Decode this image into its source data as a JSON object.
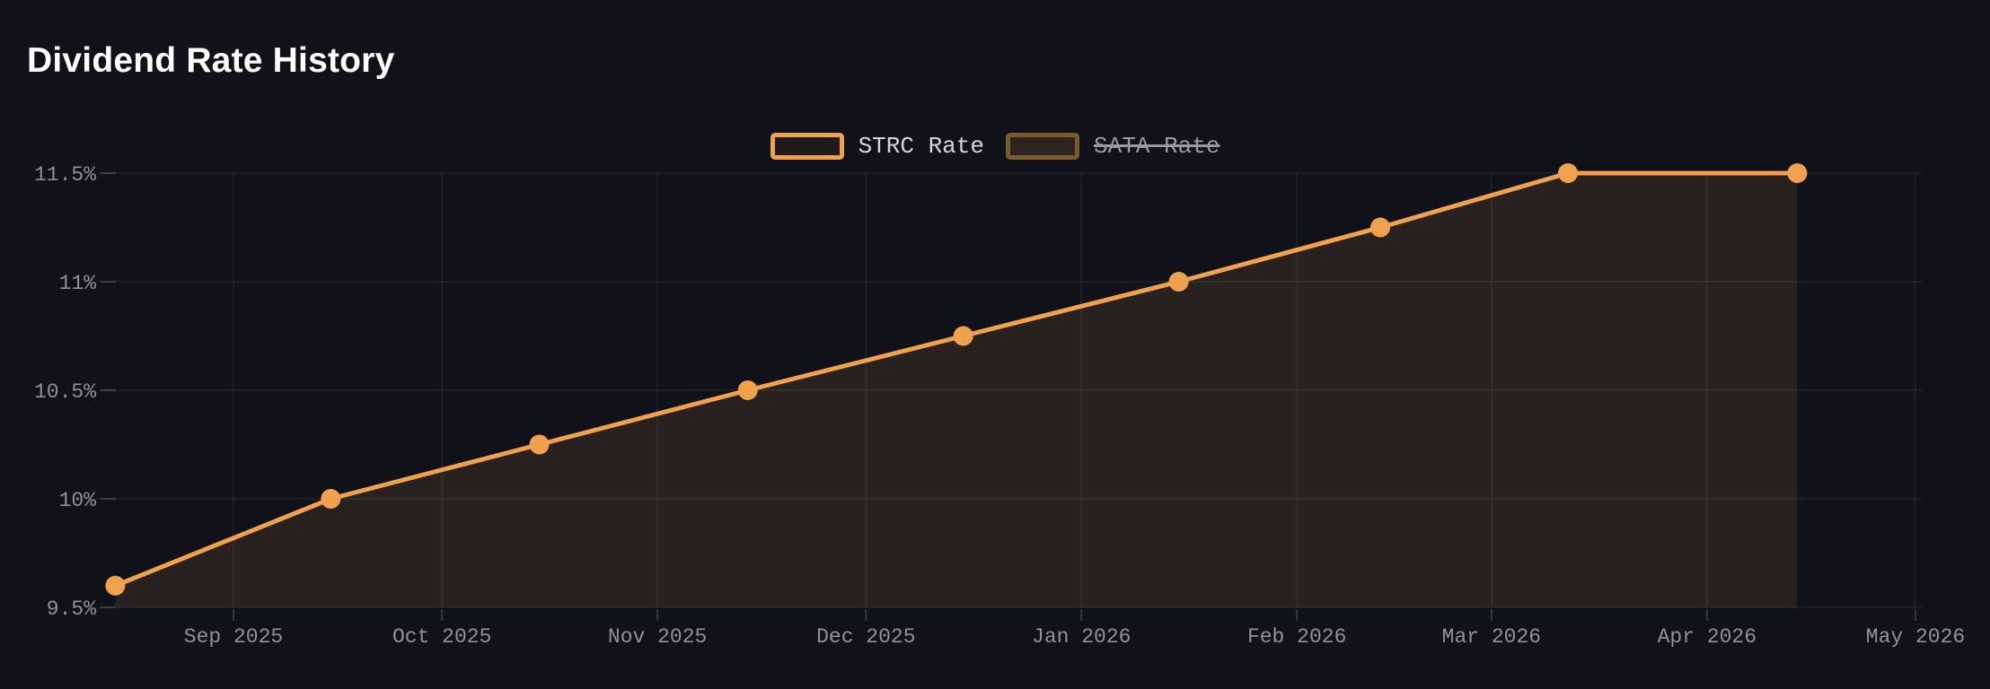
{
  "title": "Dividend Rate History",
  "colors": {
    "background": "#11111a",
    "title_text": "#ffffff",
    "accent_orange": "#f0a14e",
    "area_fill": "rgba(240,161,78,0.11)",
    "gridline": "rgba(255,255,255,0.07)",
    "tick_mark": "rgba(255,255,255,0.16)",
    "axis_text": "#8e929c",
    "legend_text_active": "#d3d6da",
    "legend_text_inactive": "#959aa3",
    "inactive_swatch_border": "#7a5a2b",
    "swatch_fill_active": "rgba(240,161,78,0.07)",
    "swatch_fill_inactive": "rgba(240,161,78,0.13)"
  },
  "legend": {
    "items": [
      {
        "label": "STRC Rate",
        "active": true
      },
      {
        "label": "SATA Rate",
        "active": false
      }
    ]
  },
  "chart_data": {
    "type": "line",
    "title": "Dividend Rate History",
    "grid": true,
    "legend_position": "top-center",
    "y_axis": {
      "unit": "%",
      "min": 9.5,
      "max": 11.5,
      "ticks": [
        {
          "value": 11.5,
          "label": "11.5%"
        },
        {
          "value": 11.0,
          "label": "11%"
        },
        {
          "value": 10.5,
          "label": "10.5%"
        },
        {
          "value": 10.0,
          "label": "10%"
        },
        {
          "value": 9.5,
          "label": "9.5%"
        }
      ]
    },
    "x_axis": {
      "type": "time",
      "ticks": [
        {
          "date": "2025-09-01",
          "label": "Sep 2025"
        },
        {
          "date": "2025-10-01",
          "label": "Oct 2025"
        },
        {
          "date": "2025-11-01",
          "label": "Nov 2025"
        },
        {
          "date": "2025-12-01",
          "label": "Dec 2025"
        },
        {
          "date": "2026-01-01",
          "label": "Jan 2026"
        },
        {
          "date": "2026-02-01",
          "label": "Feb 2026"
        },
        {
          "date": "2026-03-01",
          "label": "Mar 2026"
        },
        {
          "date": "2026-04-01",
          "label": "Apr 2026"
        },
        {
          "date": "2026-05-01",
          "label": "May 2026"
        }
      ]
    },
    "series": [
      {
        "name": "STRC Rate",
        "visible": true,
        "style": "line-with-dots-and-area",
        "points": [
          {
            "date": "2025-08-15",
            "value": 9.6
          },
          {
            "date": "2025-09-15",
            "value": 10.0
          },
          {
            "date": "2025-10-15",
            "value": 10.25
          },
          {
            "date": "2025-11-14",
            "value": 10.5
          },
          {
            "date": "2025-12-15",
            "value": 10.75
          },
          {
            "date": "2026-01-15",
            "value": 11.0
          },
          {
            "date": "2026-02-13",
            "value": 11.25
          },
          {
            "date": "2026-03-12",
            "value": 11.5
          },
          {
            "date": "2026-04-14",
            "value": 11.5
          }
        ]
      },
      {
        "name": "SATA Rate",
        "visible": false,
        "style": "hidden-toggled-off",
        "points": []
      }
    ]
  }
}
